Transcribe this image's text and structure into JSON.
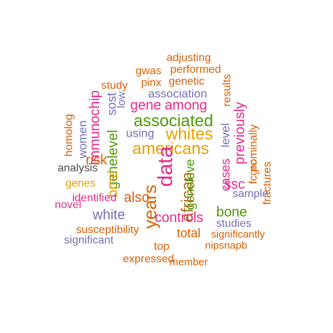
{
  "wordcloud": {
    "colors": {
      "gray": "#4d4d4d",
      "gold": "#e6a000",
      "green": "#4e9a06",
      "magenta": "#e7298a",
      "orange": "#d95f02",
      "purple": "#7570b3",
      "brown": "#a6761d"
    },
    "words": [
      {
        "text": "adjusting",
        "color": "orange",
        "vertical": false
      },
      {
        "text": "gwas",
        "color": "orange",
        "vertical": false
      },
      {
        "text": "performed",
        "color": "orange",
        "vertical": false
      },
      {
        "text": "results",
        "color": "orange",
        "vertical": true
      },
      {
        "text": "study",
        "color": "orange",
        "vertical": false
      },
      {
        "text": "pinx",
        "color": "orange",
        "vertical": false
      },
      {
        "text": "genetic",
        "color": "orange",
        "vertical": false
      },
      {
        "text": "association",
        "color": "purple",
        "vertical": false
      },
      {
        "text": "sost",
        "color": "purple",
        "vertical": true
      },
      {
        "text": "low",
        "color": "purple",
        "vertical": true
      },
      {
        "text": "gene",
        "color": "magenta",
        "vertical": false
      },
      {
        "text": "among",
        "color": "magenta",
        "vertical": false
      },
      {
        "text": "previously",
        "color": "magenta",
        "vertical": true
      },
      {
        "text": "immunochip",
        "color": "magenta",
        "vertical": true
      },
      {
        "text": "associated",
        "color": "green",
        "vertical": false
      },
      {
        "text": "whites",
        "color": "gold",
        "vertical": false
      },
      {
        "text": "using",
        "color": "purple",
        "vertical": false
      },
      {
        "text": "level",
        "color": "purple",
        "vertical": true
      },
      {
        "text": "nominally",
        "color": "orange",
        "vertical": true
      },
      {
        "text": "homolog",
        "color": "orange",
        "vertical": true
      },
      {
        "text": "women",
        "color": "purple",
        "vertical": true
      },
      {
        "text": "americans",
        "color": "gold",
        "vertical": false
      },
      {
        "text": "cases",
        "color": "magenta",
        "vertical": true
      },
      {
        "text": "fcgrc",
        "color": "orange",
        "vertical": true
      },
      {
        "text": "fractures",
        "color": "orange",
        "vertical": true
      },
      {
        "text": "genelevel",
        "color": "green",
        "vertical": true
      },
      {
        "text": "risk",
        "color": "orange",
        "vertical": false
      },
      {
        "text": "analysis",
        "color": "gray",
        "vertical": false
      },
      {
        "text": "data",
        "color": "magenta",
        "vertical": true
      },
      {
        "text": "ssc",
        "color": "magenta",
        "vertical": false
      },
      {
        "text": "sample",
        "color": "purple",
        "vertical": false
      },
      {
        "text": "geneleve",
        "color": "green",
        "vertical": true
      },
      {
        "text": "genes",
        "color": "gold",
        "vertical": false
      },
      {
        "text": "bmd",
        "color": "gold",
        "vertical": true
      },
      {
        "text": "african",
        "color": "brown",
        "vertical": true
      },
      {
        "text": "also",
        "color": "orange",
        "vertical": false
      },
      {
        "text": "years",
        "color": "orange",
        "vertical": true
      },
      {
        "text": "identified",
        "color": "magenta",
        "vertical": false
      },
      {
        "text": "novel",
        "color": "magenta",
        "vertical": false
      },
      {
        "text": "bone",
        "color": "green",
        "vertical": false
      },
      {
        "text": "white",
        "color": "purple",
        "vertical": false
      },
      {
        "text": "controls",
        "color": "magenta",
        "vertical": false
      },
      {
        "text": "studies",
        "color": "purple",
        "vertical": false
      },
      {
        "text": "total",
        "color": "orange",
        "vertical": false
      },
      {
        "text": "susceptibility",
        "color": "orange",
        "vertical": false
      },
      {
        "text": "significantly",
        "color": "orange",
        "vertical": false
      },
      {
        "text": "significant",
        "color": "purple",
        "vertical": false
      },
      {
        "text": "nipsnapb",
        "color": "orange",
        "vertical": false
      },
      {
        "text": "top",
        "color": "orange",
        "vertical": false
      },
      {
        "text": "expressed",
        "color": "orange",
        "vertical": false
      },
      {
        "text": "member",
        "color": "orange",
        "vertical": false
      }
    ]
  }
}
